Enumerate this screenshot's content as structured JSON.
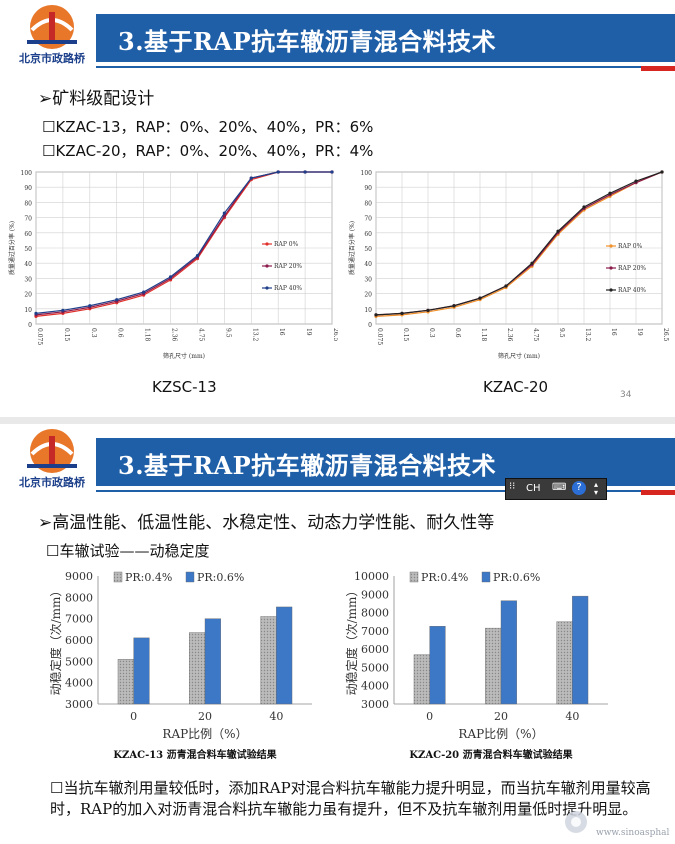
{
  "slide1": {
    "logo_text": "北京市政路桥",
    "title": "3.基于RAP抗车辙沥青混合料技术",
    "heading": "矿料级配设计",
    "bullets": [
      "KZAC-13，RAP：0%、20%、40%，PR：6%",
      "KZAC-20，RAP：0%、20%、40%，PR：4%"
    ],
    "captions": [
      "KZSC-13",
      "KZAC-20"
    ],
    "page_number": "34"
  },
  "slide2": {
    "logo_text": "北京市政路桥",
    "title": "3.基于RAP抗车辙沥青混合料技术",
    "heading": "高温性能、低温性能、水稳定性、动态力学性能、耐久性等",
    "subheading": "车辙试验——动稳定度",
    "ime": {
      "lang": "CH"
    },
    "conclusion": "当抗车辙剂用量较低时，添加RAP对混合料抗车辙能力提升明显，而当抗车辙剂用量较高时，RAP的加入对沥青混合料抗车辙能力虽有提升，但不及抗车辙剂用量低时提升明显。",
    "watermark": "www.sinoasphalt.com"
  },
  "chart_data": [
    {
      "type": "line",
      "xlabel": "筛孔尺寸 (mm)",
      "ylabel": "质量通过百分率 (%)",
      "x": [
        "0.075",
        "0.15",
        "0.3",
        "0.6",
        "1.18",
        "2.36",
        "4.75",
        "9.5",
        "13.2",
        "16",
        "19",
        "26.5"
      ],
      "ylim": [
        0,
        100
      ],
      "yticks": [
        "0",
        "10",
        "20",
        "30",
        "40",
        "50",
        "60",
        "70",
        "80",
        "90",
        "100"
      ],
      "legend_position": "right",
      "series": [
        {
          "name": "RAP 0%",
          "color": "#e0302a",
          "values": [
            5,
            7,
            10,
            14,
            19,
            29,
            43,
            70,
            95,
            100,
            100,
            100
          ]
        },
        {
          "name": "RAP 20%",
          "color": "#8b1a4a",
          "values": [
            6,
            8,
            11,
            15,
            20,
            30,
            44,
            71,
            96,
            100,
            100,
            100
          ]
        },
        {
          "name": "RAP 40%",
          "color": "#1f3f8a",
          "values": [
            7,
            9,
            12,
            16,
            21,
            31,
            45,
            73,
            96,
            100,
            100,
            100
          ]
        }
      ]
    },
    {
      "type": "line",
      "xlabel": "筛孔尺寸 (mm)",
      "ylabel": "质量通过百分率 (%)",
      "x": [
        "0.075",
        "0.15",
        "0.3",
        "0.6",
        "1.18",
        "2.36",
        "4.75",
        "9.5",
        "13.2",
        "16",
        "19",
        "26.5"
      ],
      "ylim": [
        0,
        100
      ],
      "yticks": [
        "0",
        "10",
        "20",
        "30",
        "40",
        "50",
        "60",
        "70",
        "80",
        "90",
        "100"
      ],
      "legend_position": "right",
      "series": [
        {
          "name": "RAP 0%",
          "color": "#f0902a",
          "values": [
            5,
            6,
            8,
            11,
            16,
            24,
            38,
            59,
            75,
            84,
            93,
            100
          ]
        },
        {
          "name": "RAP 20%",
          "color": "#8b1a4a",
          "values": [
            6,
            7,
            9,
            12,
            17,
            25,
            39,
            60,
            76,
            85,
            93,
            100
          ]
        },
        {
          "name": "RAP 40%",
          "color": "#222222",
          "values": [
            6,
            7,
            9,
            12,
            17,
            25,
            40,
            61,
            77,
            86,
            94,
            100
          ]
        }
      ]
    },
    {
      "type": "bar",
      "title": "KZAC-13 沥青混合料车辙试验结果",
      "xlabel": "RAP比例（%）",
      "ylabel": "动稳定度（次/mm）",
      "categories": [
        "0",
        "20",
        "40"
      ],
      "ylim": [
        3000,
        9000
      ],
      "yticks": [
        "3000",
        "4000",
        "5000",
        "6000",
        "7000",
        "8000",
        "9000"
      ],
      "series": [
        {
          "name": "PR:0.4%",
          "color": "#bbbbbb",
          "values": [
            5100,
            6350,
            7100
          ]
        },
        {
          "name": "PR:0.6%",
          "color": "#3d78c7",
          "values": [
            6100,
            7000,
            7550
          ]
        }
      ]
    },
    {
      "type": "bar",
      "title": "KZAC-20 沥青混合料车辙试验结果",
      "xlabel": "RAP比例（%）",
      "ylabel": "动稳定度（次/mm）",
      "categories": [
        "0",
        "20",
        "40"
      ],
      "ylim": [
        3000,
        10000
      ],
      "yticks": [
        "3000",
        "4000",
        "5000",
        "6000",
        "7000",
        "8000",
        "9000",
        "10000"
      ],
      "series": [
        {
          "name": "PR:0.4%",
          "color": "#bbbbbb",
          "values": [
            5700,
            7150,
            7500
          ]
        },
        {
          "name": "PR:0.6%",
          "color": "#3d78c7",
          "values": [
            7250,
            8650,
            8900
          ]
        }
      ]
    }
  ]
}
